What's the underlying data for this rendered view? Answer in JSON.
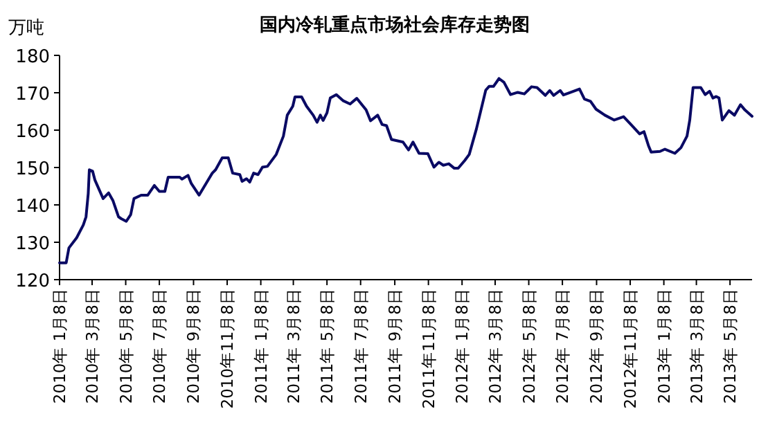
{
  "chart_data": {
    "type": "line",
    "title": "国内冷轧重点市场社会库存走势图",
    "ylabel": "万吨",
    "x": [
      "2010-01-08",
      "2010-01-20",
      "2010-01-25",
      "2010-02-08",
      "2010-02-20",
      "2010-02-25",
      "2010-03-01",
      "2010-03-03",
      "2010-03-09",
      "2010-03-13",
      "2010-03-28",
      "2010-04-07",
      "2010-04-15",
      "2010-04-25",
      "2010-04-30",
      "2010-05-09",
      "2010-05-17",
      "2010-05-23",
      "2010-06-05",
      "2010-06-17",
      "2010-06-29",
      "2010-07-08",
      "2010-07-18",
      "2010-07-24",
      "2010-08-14",
      "2010-08-18",
      "2010-08-29",
      "2010-09-04",
      "2010-09-18",
      "2010-10-12",
      "2010-10-18",
      "2010-10-30",
      "2010-11-10",
      "2010-11-18",
      "2010-12-01",
      "2010-12-05",
      "2010-12-13",
      "2010-12-19",
      "2010-12-26",
      "2011-01-03",
      "2011-01-11",
      "2011-01-20",
      "2011-02-05",
      "2011-02-18",
      "2011-02-25",
      "2011-03-07",
      "2011-03-11",
      "2011-03-23",
      "2011-04-01",
      "2011-04-13",
      "2011-04-20",
      "2011-04-26",
      "2011-05-01",
      "2011-05-08",
      "2011-05-14",
      "2011-05-25",
      "2011-06-06",
      "2011-06-19",
      "2011-07-01",
      "2011-07-18",
      "2011-07-26",
      "2011-08-08",
      "2011-08-16",
      "2011-08-24",
      "2011-09-02",
      "2011-09-23",
      "2011-10-03",
      "2011-10-11",
      "2011-10-22",
      "2011-11-07",
      "2011-11-18",
      "2011-11-27",
      "2011-12-05",
      "2011-12-15",
      "2011-12-25",
      "2012-01-01",
      "2012-01-13",
      "2012-01-21",
      "2012-02-03",
      "2012-02-20",
      "2012-02-26",
      "2012-03-05",
      "2012-03-15",
      "2012-03-24",
      "2012-04-05",
      "2012-04-18",
      "2012-04-30",
      "2012-05-13",
      "2012-05-23",
      "2012-06-07",
      "2012-06-15",
      "2012-06-22",
      "2012-07-04",
      "2012-07-10",
      "2012-07-23",
      "2012-08-08",
      "2012-08-17",
      "2012-08-28",
      "2012-09-07",
      "2012-09-23",
      "2012-10-10",
      "2012-10-27",
      "2012-11-12",
      "2012-11-25",
      "2012-12-03",
      "2012-12-11",
      "2012-12-16",
      "2013-01-01",
      "2013-01-10",
      "2013-01-28",
      "2013-02-08",
      "2013-02-19",
      "2013-02-24",
      "2013-03-02",
      "2013-03-16",
      "2013-03-24",
      "2013-04-01",
      "2013-04-07",
      "2013-04-13",
      "2013-04-18",
      "2013-04-24",
      "2013-05-06",
      "2013-05-16",
      "2013-05-27",
      "2013-06-04",
      "2013-06-17"
    ],
    "series": [
      {
        "color": "#0a0a64",
        "values": [
          124.5,
          124.5,
          128.5,
          131.2,
          134.6,
          136.8,
          143,
          149.4,
          149,
          146.7,
          141.7,
          143.2,
          141.1,
          136.8,
          136.3,
          135.6,
          137.4,
          141.7,
          142.6,
          142.6,
          145.2,
          143.6,
          143.6,
          147.4,
          147.4,
          146.9,
          147.9,
          145.7,
          142.6,
          148.5,
          149.4,
          152.6,
          152.6,
          148.5,
          148.1,
          146.3,
          147,
          146.1,
          148.5,
          148.1,
          150.1,
          150.3,
          153.5,
          158.4,
          164,
          166.4,
          168.9,
          168.9,
          166.4,
          164,
          162.1,
          164,
          162.6,
          164.6,
          168.6,
          169.5,
          167.9,
          167,
          168.5,
          165.4,
          162.5,
          164,
          161.5,
          161.2,
          157.5,
          156.8,
          154.7,
          156.8,
          153.8,
          153.7,
          150.1,
          151.4,
          150.6,
          151,
          149.8,
          149.8,
          151.9,
          153.5,
          160.3,
          170.7,
          171.7,
          171.7,
          173.8,
          172.8,
          169.5,
          170.1,
          169.7,
          171.6,
          171.4,
          169.3,
          170.6,
          169.3,
          170.6,
          169.4,
          170.1,
          171,
          168.3,
          167.7,
          165.6,
          164,
          162.7,
          163.6,
          161.1,
          159,
          159.6,
          155.9,
          154.1,
          154.3,
          154.9,
          153.8,
          155.3,
          158.4,
          162.7,
          171.4,
          171.4,
          169.5,
          170.4,
          168.6,
          169,
          168.6,
          162.7,
          165.2,
          164,
          166.8,
          165.4,
          163.7
        ]
      }
    ],
    "xlim": [
      "2010-01-08",
      "2013-06-17"
    ],
    "xticks": [
      {
        "value": "2010-01-08",
        "label": "2010年 1月8日"
      },
      {
        "value": "2010-03-08",
        "label": "2010年 3月8日"
      },
      {
        "value": "2010-05-08",
        "label": "2010年 5月8日"
      },
      {
        "value": "2010-07-08",
        "label": "2010年 7月8日"
      },
      {
        "value": "2010-09-08",
        "label": "2010年 9月8日"
      },
      {
        "value": "2010-11-08",
        "label": "2010年11月8日"
      },
      {
        "value": "2011-01-08",
        "label": "2011年 1月8日"
      },
      {
        "value": "2011-03-08",
        "label": "2011年 3月8日"
      },
      {
        "value": "2011-05-08",
        "label": "2011年 5月8日"
      },
      {
        "value": "2011-07-08",
        "label": "2011年 7月8日"
      },
      {
        "value": "2011-09-08",
        "label": "2011年 9月8日"
      },
      {
        "value": "2011-11-08",
        "label": "2011年11月8日"
      },
      {
        "value": "2012-01-08",
        "label": "2012年 1月8日"
      },
      {
        "value": "2012-03-08",
        "label": "2012年 3月8日"
      },
      {
        "value": "2012-05-08",
        "label": "2012年 5月8日"
      },
      {
        "value": "2012-07-08",
        "label": "2012年 7月8日"
      },
      {
        "value": "2012-09-08",
        "label": "2012年 9月8日"
      },
      {
        "value": "2012-11-08",
        "label": "2012年11月8日"
      },
      {
        "value": "2013-01-08",
        "label": "2013年 1月8日"
      },
      {
        "value": "2013-03-08",
        "label": "2013年 3月8日"
      },
      {
        "value": "2013-05-08",
        "label": "2013年 5月8日"
      }
    ],
    "ylim": [
      120,
      180
    ],
    "yticks": [
      120,
      130,
      140,
      150,
      160,
      170,
      180
    ]
  }
}
